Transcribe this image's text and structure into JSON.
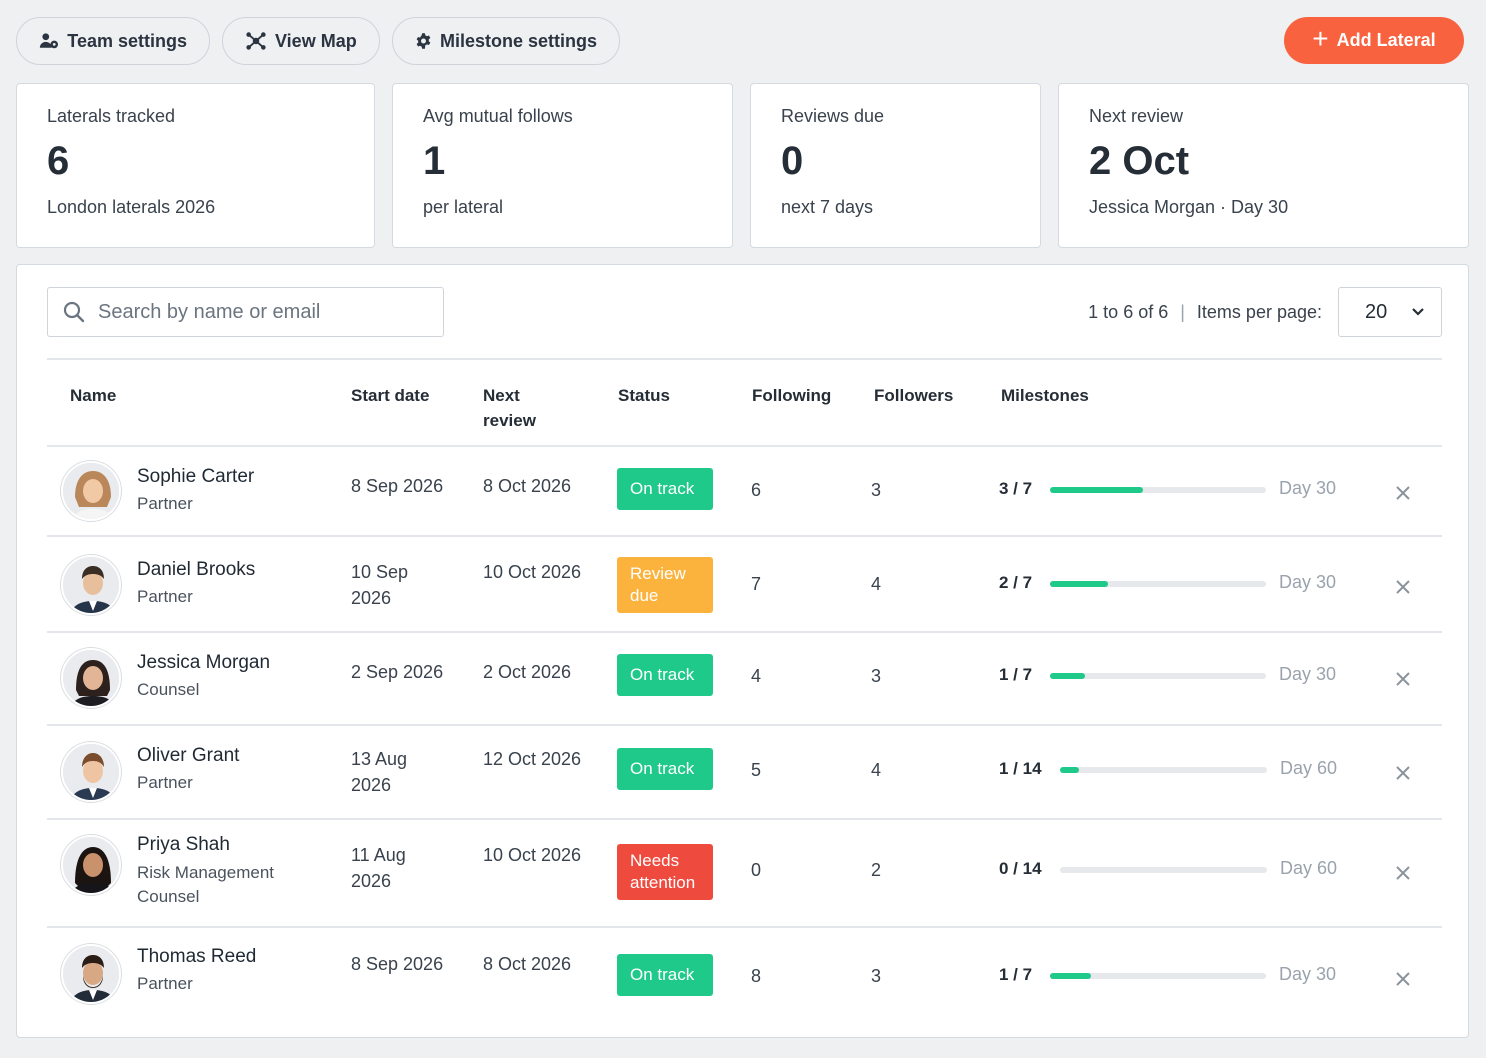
{
  "toolbar": {
    "team_settings": "Team settings",
    "view_map": "View Map",
    "milestone_settings": "Milestone settings",
    "add_lateral": "Add Lateral"
  },
  "colors": {
    "accent": "#f9623f",
    "on_track": "#1ec98a",
    "review_due": "#fbb33e",
    "needs_attention": "#ef4a3e"
  },
  "stats": [
    {
      "label": "Laterals tracked",
      "value": "6",
      "sub": "London laterals 2026"
    },
    {
      "label": "Avg mutual follows",
      "value": "1",
      "sub": "per lateral"
    },
    {
      "label": "Reviews due",
      "value": "0",
      "sub": "next 7 days"
    },
    {
      "label": "Next review",
      "value": "2 Oct",
      "sub": "Jessica Morgan · Day 30"
    }
  ],
  "search": {
    "placeholder": "Search by name or email",
    "value": ""
  },
  "pager": {
    "range": "1 to 6 of 6",
    "separator": "|",
    "items_label": "Items per page:",
    "per_page": "20"
  },
  "table": {
    "headers": {
      "name": "Name",
      "start": "Start date",
      "next1": "Next",
      "next2": "review",
      "status": "Status",
      "following": "Following",
      "followers": "Followers",
      "milestones": "Milestones"
    },
    "rows": [
      {
        "name": "Sophie Carter",
        "role": "Partner",
        "start": "8 Sep 2026",
        "next": "8 Oct 2026",
        "status": "On track",
        "following": "6",
        "followers": "3",
        "milestones": "3 / 7",
        "progress": 0.43,
        "day": "Day 30"
      },
      {
        "name": "Daniel Brooks",
        "role": "Partner",
        "start1": "10 Sep",
        "start2": "2026",
        "next": "10 Oct 2026",
        "status1": "Review",
        "status2": "due",
        "following": "7",
        "followers": "4",
        "milestones": "2 / 7",
        "progress": 0.27,
        "day": "Day 30"
      },
      {
        "name": "Jessica Morgan",
        "role": "Counsel",
        "start": "2 Sep 2026",
        "next": "2 Oct 2026",
        "status": "On track",
        "following": "4",
        "followers": "3",
        "milestones": "1 / 7",
        "progress": 0.16,
        "day": "Day 30"
      },
      {
        "name": "Oliver Grant",
        "role": "Partner",
        "start1": "13 Aug",
        "start2": "2026",
        "next": "12 Oct 2026",
        "status": "On track",
        "following": "5",
        "followers": "4",
        "milestones": "1 / 14",
        "progress": 0.09,
        "day": "Day 60"
      },
      {
        "name": "Priya Shah",
        "role1": "Risk Management",
        "role2": "Counsel",
        "start1": "11 Aug",
        "start2": "2026",
        "next": "10 Oct 2026",
        "status1": "Needs",
        "status2": "attention",
        "following": "0",
        "followers": "2",
        "milestones": "0 / 14",
        "progress": 0,
        "day": "Day 60"
      },
      {
        "name": "Thomas Reed",
        "role": "Partner",
        "start": "8 Sep 2026",
        "next": "8 Oct 2026",
        "status": "On track",
        "following": "8",
        "followers": "3",
        "milestones": "1 / 7",
        "progress": 0.19,
        "day": "Day 30"
      }
    ]
  }
}
